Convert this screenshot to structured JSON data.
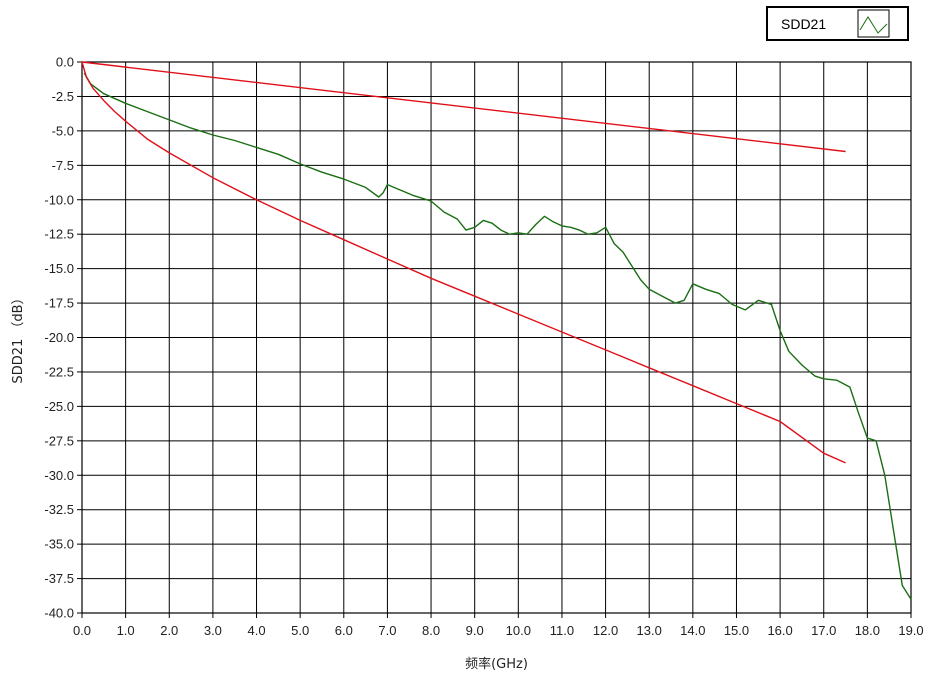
{
  "chart_data": {
    "type": "line",
    "title": "",
    "xlabel": "频率(GHz)",
    "ylabel": "SDD21 （dB）",
    "xlim": [
      0,
      19
    ],
    "ylim": [
      -40,
      0
    ],
    "grid": true,
    "legend_position": "top-right",
    "x_ticks": [
      "0.0",
      "1.0",
      "2.0",
      "3.0",
      "4.0",
      "5.0",
      "6.0",
      "7.0",
      "8.0",
      "9.0",
      "10.0",
      "11.0",
      "12.0",
      "13.0",
      "14.0",
      "15.0",
      "16.0",
      "17.0",
      "18.0",
      "19.0"
    ],
    "y_ticks": [
      "0.0",
      "-2.5",
      "-5.0",
      "-7.5",
      "-10.0",
      "-12.5",
      "-15.0",
      "-17.5",
      "-20.0",
      "-22.5",
      "-25.0",
      "-27.5",
      "-30.0",
      "-32.5",
      "-35.0",
      "-37.5",
      "-40.0"
    ],
    "legend": [
      {
        "label": "SDD21",
        "color": "#1a6e14"
      }
    ],
    "series": [
      {
        "name": "SDD21",
        "color": "#1a6e14",
        "x": [
          0.05,
          0.2,
          0.5,
          1.0,
          1.5,
          2.0,
          2.5,
          3.0,
          3.5,
          4.0,
          4.5,
          5.0,
          5.5,
          6.0,
          6.5,
          6.8,
          6.9,
          7.0,
          7.3,
          7.6,
          8.0,
          8.3,
          8.6,
          8.8,
          9.0,
          9.2,
          9.4,
          9.6,
          9.8,
          10.0,
          10.2,
          10.4,
          10.6,
          10.8,
          11.0,
          11.2,
          11.4,
          11.6,
          11.8,
          12.0,
          12.2,
          12.4,
          12.6,
          12.8,
          13.0,
          13.3,
          13.6,
          13.8,
          14.0,
          14.3,
          14.6,
          14.9,
          15.2,
          15.5,
          15.8,
          16.0,
          16.2,
          16.5,
          16.8,
          17.0,
          17.3,
          17.6,
          17.8,
          18.0,
          18.2,
          18.4,
          18.6,
          18.8,
          19.0
        ],
        "y": [
          -0.8,
          -1.6,
          -2.3,
          -3.0,
          -3.6,
          -4.2,
          -4.8,
          -5.3,
          -5.7,
          -6.2,
          -6.7,
          -7.4,
          -8.0,
          -8.5,
          -9.1,
          -9.8,
          -9.5,
          -8.9,
          -9.3,
          -9.7,
          -10.1,
          -10.9,
          -11.4,
          -12.2,
          -12.0,
          -11.5,
          -11.7,
          -12.2,
          -12.5,
          -12.4,
          -12.5,
          -11.8,
          -11.2,
          -11.6,
          -11.9,
          -12.0,
          -12.2,
          -12.5,
          -12.4,
          -12.0,
          -13.2,
          -13.8,
          -14.8,
          -15.8,
          -16.5,
          -17.0,
          -17.5,
          -17.3,
          -16.1,
          -16.5,
          -16.8,
          -17.6,
          -18.0,
          -17.3,
          -17.6,
          -19.5,
          -21.0,
          -22.0,
          -22.8,
          -23.0,
          -23.1,
          -23.6,
          -25.5,
          -27.3,
          -27.5,
          -30.0,
          -34.0,
          -38.0,
          -39.0
        ]
      },
      {
        "name": "",
        "color": "#e0101a",
        "x": [
          0,
          17.5
        ],
        "y": [
          0,
          -6.5
        ]
      },
      {
        "name": "",
        "color": "#e0101a",
        "x": [
          0,
          0.1,
          0.25,
          0.5,
          0.75,
          1.0,
          1.5,
          2.0,
          3.0,
          4.0,
          5.0,
          6.0,
          7.0,
          8.0,
          9.0,
          10.0,
          11.0,
          12.0,
          13.0,
          14.0,
          15.0,
          16.0,
          17.0,
          17.5
        ],
        "y": [
          0,
          -1.1,
          -1.9,
          -2.8,
          -3.6,
          -4.3,
          -5.6,
          -6.6,
          -8.4,
          -10.0,
          -11.5,
          -12.9,
          -14.3,
          -15.7,
          -17.0,
          -18.3,
          -19.6,
          -20.9,
          -22.2,
          -23.5,
          -24.8,
          -26.1,
          -28.4,
          -29.1
        ]
      }
    ]
  }
}
